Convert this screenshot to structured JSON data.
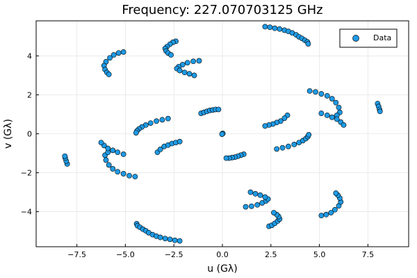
{
  "chart_data": {
    "type": "scatter",
    "title": "Frequency: 227.070703125 GHz",
    "xlabel": "u (Gλ)",
    "ylabel": "v (Gλ)",
    "xlim": [
      -9.6,
      9.6
    ],
    "ylim": [
      -5.8,
      5.8
    ],
    "xticks": [
      -7.5,
      -5.0,
      -2.5,
      0.0,
      2.5,
      5.0,
      7.5
    ],
    "xtick_labels": [
      "−7.5",
      "−5.0",
      "−2.5",
      "0.0",
      "2.5",
      "5.0",
      "7.5"
    ],
    "yticks": [
      -4,
      -2,
      0,
      2,
      4
    ],
    "ytick_labels": [
      "−4",
      "−2",
      "0",
      "2",
      "4"
    ],
    "grid": true,
    "legend": "top-right",
    "marker_color": "#1f9ae4",
    "series": [
      {
        "name": "Data",
        "points": [
          [
            2.2,
            5.5
          ],
          [
            2.45,
            5.47
          ],
          [
            2.7,
            5.42
          ],
          [
            2.95,
            5.38
          ],
          [
            3.2,
            5.32
          ],
          [
            3.4,
            5.26
          ],
          [
            3.6,
            5.18
          ],
          [
            3.8,
            5.08
          ],
          [
            3.95,
            4.98
          ],
          [
            4.1,
            4.9
          ],
          [
            4.25,
            4.8
          ],
          [
            4.38,
            4.72
          ],
          [
            4.42,
            4.62
          ],
          [
            -4.42,
            -4.62
          ],
          [
            -4.38,
            -4.72
          ],
          [
            -4.25,
            -4.8
          ],
          [
            -4.1,
            -4.9
          ],
          [
            -3.95,
            -4.98
          ],
          [
            -3.8,
            -5.08
          ],
          [
            -3.6,
            -5.18
          ],
          [
            -3.4,
            -5.26
          ],
          [
            -3.2,
            -5.32
          ],
          [
            -2.95,
            -5.38
          ],
          [
            -2.7,
            -5.42
          ],
          [
            -2.45,
            -5.47
          ],
          [
            -2.2,
            -5.5
          ],
          [
            -2.4,
            4.75
          ],
          [
            -2.55,
            4.7
          ],
          [
            -2.7,
            4.6
          ],
          [
            -2.85,
            4.48
          ],
          [
            -2.95,
            4.38
          ],
          [
            -2.9,
            4.25
          ],
          [
            -2.8,
            4.15
          ],
          [
            -2.65,
            4.05
          ],
          [
            2.4,
            -4.75
          ],
          [
            2.55,
            -4.7
          ],
          [
            2.7,
            -4.6
          ],
          [
            2.85,
            -4.48
          ],
          [
            2.95,
            -4.38
          ],
          [
            2.9,
            -4.25
          ],
          [
            2.8,
            -4.15
          ],
          [
            2.65,
            -4.05
          ],
          [
            -5.1,
            4.2
          ],
          [
            -5.35,
            4.15
          ],
          [
            -5.6,
            4.05
          ],
          [
            -5.8,
            3.9
          ],
          [
            -6.0,
            3.7
          ],
          [
            -6.1,
            3.5
          ],
          [
            -6.05,
            3.3
          ],
          [
            -5.95,
            3.15
          ],
          [
            -5.85,
            3.05
          ],
          [
            5.1,
            -4.2
          ],
          [
            5.35,
            -4.15
          ],
          [
            5.6,
            -4.05
          ],
          [
            5.8,
            -3.9
          ],
          [
            6.0,
            -3.7
          ],
          [
            6.1,
            -3.5
          ],
          [
            6.05,
            -3.3
          ],
          [
            5.95,
            -3.15
          ],
          [
            5.85,
            -3.05
          ],
          [
            -1.2,
            3.75
          ],
          [
            -1.5,
            3.72
          ],
          [
            -1.8,
            3.65
          ],
          [
            -2.05,
            3.55
          ],
          [
            -2.25,
            3.45
          ],
          [
            -2.35,
            3.35
          ],
          [
            -2.2,
            3.25
          ],
          [
            -1.95,
            3.15
          ],
          [
            -1.7,
            3.08
          ],
          [
            -1.45,
            3.0
          ],
          [
            1.2,
            -3.75
          ],
          [
            1.5,
            -3.72
          ],
          [
            1.8,
            -3.65
          ],
          [
            2.05,
            -3.55
          ],
          [
            2.25,
            -3.45
          ],
          [
            2.35,
            -3.35
          ],
          [
            2.2,
            -3.25
          ],
          [
            1.95,
            -3.15
          ],
          [
            1.7,
            -3.08
          ],
          [
            1.45,
            -3.0
          ],
          [
            4.5,
            2.2
          ],
          [
            4.8,
            2.15
          ],
          [
            5.1,
            2.05
          ],
          [
            5.4,
            1.95
          ],
          [
            5.65,
            1.8
          ],
          [
            5.85,
            1.6
          ],
          [
            6.0,
            1.35
          ],
          [
            6.05,
            1.1
          ],
          [
            5.9,
            0.95
          ],
          [
            -4.5,
            -2.2
          ],
          [
            -4.8,
            -2.15
          ],
          [
            -5.1,
            -2.05
          ],
          [
            -5.4,
            -1.95
          ],
          [
            -5.65,
            -1.8
          ],
          [
            -5.85,
            -1.6
          ],
          [
            -6.0,
            -1.35
          ],
          [
            -6.05,
            -1.1
          ],
          [
            -5.9,
            -0.95
          ],
          [
            5.1,
            1.05
          ],
          [
            5.4,
            0.95
          ],
          [
            5.65,
            0.85
          ],
          [
            5.9,
            0.75
          ],
          [
            6.1,
            0.6
          ],
          [
            6.25,
            0.45
          ],
          [
            -5.1,
            -1.05
          ],
          [
            -5.4,
            -0.95
          ],
          [
            -5.65,
            -0.85
          ],
          [
            -5.9,
            -0.75
          ],
          [
            -6.1,
            -0.6
          ],
          [
            -6.25,
            -0.45
          ],
          [
            -2.8,
            0.78
          ],
          [
            -3.1,
            0.72
          ],
          [
            -3.4,
            0.65
          ],
          [
            -3.7,
            0.55
          ],
          [
            -3.95,
            0.45
          ],
          [
            -4.15,
            0.35
          ],
          [
            -4.3,
            0.25
          ],
          [
            -4.4,
            0.15
          ],
          [
            -4.45,
            0.05
          ],
          [
            2.8,
            -0.78
          ],
          [
            3.1,
            -0.72
          ],
          [
            3.4,
            -0.65
          ],
          [
            3.7,
            -0.55
          ],
          [
            3.95,
            -0.45
          ],
          [
            4.15,
            -0.35
          ],
          [
            4.3,
            -0.25
          ],
          [
            4.4,
            -0.15
          ],
          [
            4.45,
            -0.05
          ],
          [
            3.35,
            0.95
          ],
          [
            3.2,
            0.8
          ],
          [
            3.0,
            0.65
          ],
          [
            2.8,
            0.58
          ],
          [
            2.6,
            0.5
          ],
          [
            2.4,
            0.45
          ],
          [
            2.2,
            0.4
          ],
          [
            -3.35,
            -0.95
          ],
          [
            -3.2,
            -0.8
          ],
          [
            -3.0,
            -0.65
          ],
          [
            -2.8,
            -0.58
          ],
          [
            -2.6,
            -0.5
          ],
          [
            -2.4,
            -0.45
          ],
          [
            -2.2,
            -0.4
          ],
          [
            -1.1,
            1.05
          ],
          [
            -0.95,
            1.1
          ],
          [
            -0.8,
            1.15
          ],
          [
            -0.65,
            1.2
          ],
          [
            -0.5,
            1.22
          ],
          [
            -0.35,
            1.25
          ],
          [
            -0.2,
            1.25
          ],
          [
            1.1,
            -1.05
          ],
          [
            0.95,
            -1.1
          ],
          [
            0.8,
            -1.15
          ],
          [
            0.65,
            -1.2
          ],
          [
            0.5,
            -1.22
          ],
          [
            0.35,
            -1.25
          ],
          [
            0.2,
            -1.25
          ],
          [
            8.0,
            1.55
          ],
          [
            8.05,
            1.4
          ],
          [
            8.1,
            1.25
          ],
          [
            8.12,
            1.15
          ],
          [
            -8.0,
            -1.55
          ],
          [
            -8.05,
            -1.4
          ],
          [
            -8.1,
            -1.25
          ],
          [
            -8.12,
            -1.15
          ],
          [
            0.0,
            0.0
          ],
          [
            0.02,
            0.02
          ],
          [
            -0.02,
            -0.02
          ]
        ]
      }
    ]
  }
}
